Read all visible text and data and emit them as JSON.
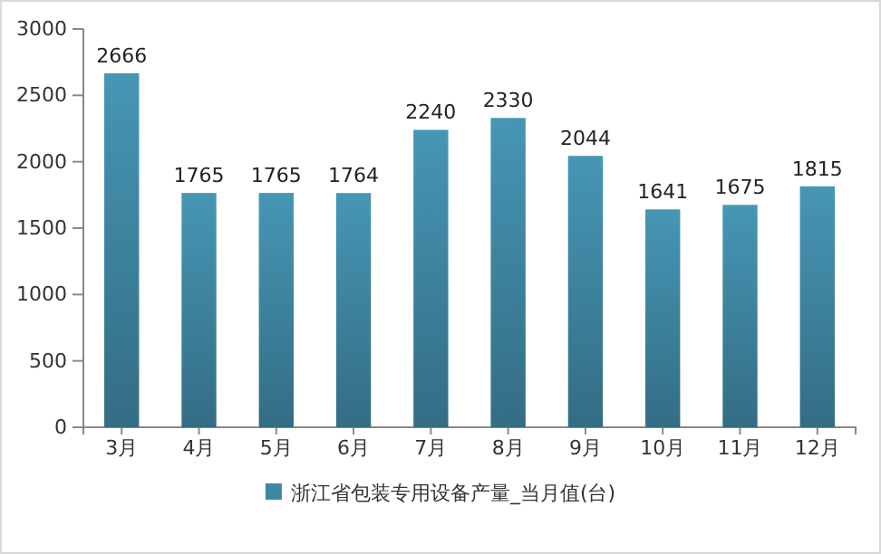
{
  "chart_data": {
    "type": "bar",
    "categories": [
      "3月",
      "4月",
      "5月",
      "6月",
      "7月",
      "8月",
      "9月",
      "10月",
      "11月",
      "12月"
    ],
    "series": [
      {
        "name": "浙江省包装专用设备产量_当月值(台)",
        "color": "#3f87a3",
        "values": [
          2666,
          1765,
          1765,
          1764,
          2240,
          2330,
          2044,
          1641,
          1675,
          1815
        ]
      }
    ],
    "ylim": [
      0,
      3000
    ],
    "yticks": [
      0,
      500,
      1000,
      1500,
      2000,
      2500,
      3000
    ],
    "data_labels": true,
    "legend": "bottom",
    "grid": false
  }
}
